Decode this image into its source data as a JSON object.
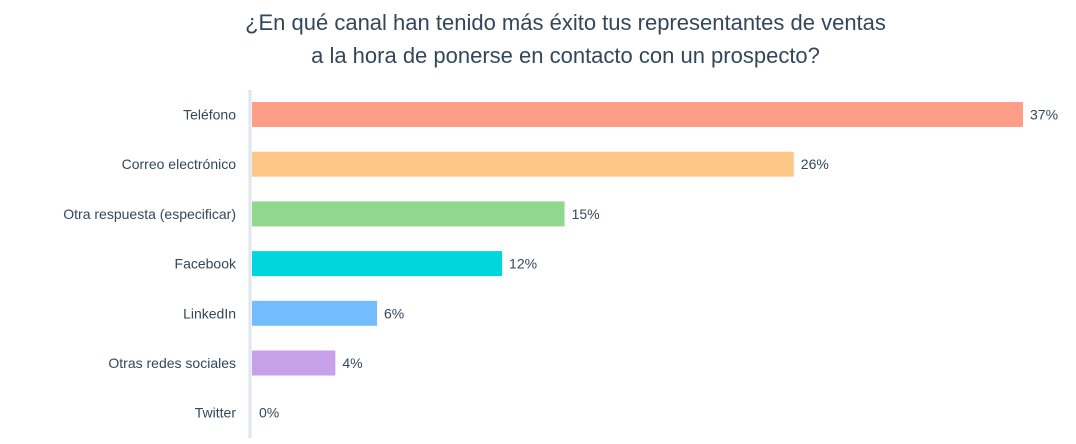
{
  "chart_data": {
    "type": "bar",
    "orientation": "horizontal",
    "title": [
      "¿En qué canal han tenido más éxito tus representantes de ventas",
      "a la hora de ponerse en contacto con un prospecto?"
    ],
    "categories": [
      "Teléfono",
      "Correo electrónico",
      "Otra respuesta (especificar)",
      "Facebook",
      "LinkedIn",
      "Otras redes sociales",
      "Twitter"
    ],
    "values": [
      37,
      26,
      15,
      12,
      6,
      4,
      0
    ],
    "data_labels": [
      "37%",
      "26%",
      "15%",
      "12%",
      "6%",
      "4%",
      "0%"
    ],
    "colors": [
      "#ff9e86",
      "#fdc78a",
      "#8fd88e",
      "#00d7dc",
      "#73bdff",
      "#c6a1ea",
      "#cccccc"
    ],
    "xlabel": "",
    "ylabel": "",
    "xlim": [
      0,
      37
    ],
    "grid": false,
    "legend": "none"
  }
}
